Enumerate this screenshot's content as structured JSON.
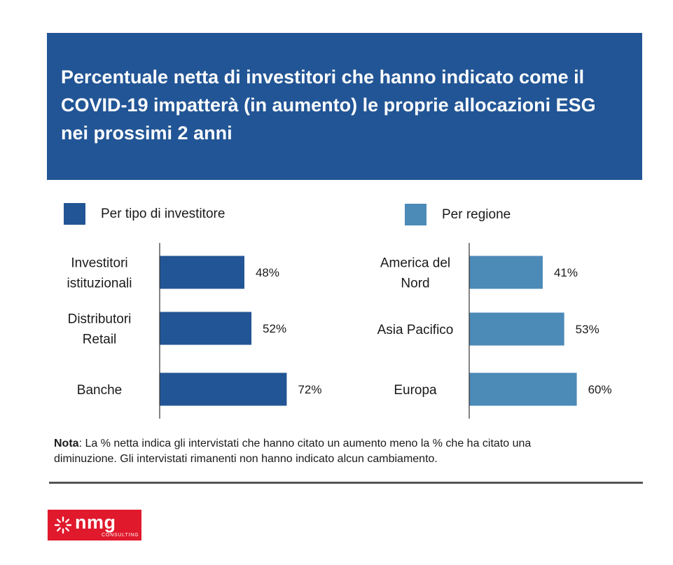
{
  "header": {
    "title": "Percentuale netta di investitori che hanno indicato come il COVID-19 impatterà (in aumento) le proprie allocazioni ESG nei prossimi 2 anni"
  },
  "colors": {
    "header_bg": "#225595",
    "investor_bar": "#225595",
    "region_bar": "#4c8ab8",
    "logo_bg": "#e0192c"
  },
  "chart_data": [
    {
      "type": "bar",
      "orientation": "horizontal",
      "legend_label": "Per tipo di investitore",
      "categories": [
        "Investitori istituzionali",
        "Distributori Retail",
        "Banche"
      ],
      "category_lines": [
        [
          "Investitori",
          "istituzionali"
        ],
        [
          "Distributori",
          "Retail"
        ],
        [
          "Banche"
        ]
      ],
      "values": [
        48,
        52,
        72
      ],
      "value_labels": [
        "48%",
        "52%",
        "72%"
      ],
      "xlim": [
        0,
        100
      ]
    },
    {
      "type": "bar",
      "orientation": "horizontal",
      "legend_label": "Per regione",
      "categories": [
        "America del Nord",
        "Asia Pacifico",
        "Europa"
      ],
      "category_lines": [
        [
          "America del",
          "Nord"
        ],
        [
          "Asia Pacifico"
        ],
        [
          "Europa"
        ]
      ],
      "values": [
        41,
        53,
        60
      ],
      "value_labels": [
        "41%",
        "53%",
        "60%"
      ],
      "xlim": [
        0,
        100
      ]
    }
  ],
  "note": {
    "label": "Nota",
    "text": ": La % netta indica gli intervistati che hanno citato un aumento meno la % che ha citato una diminuzione. Gli intervistati rimanenti non hanno indicato alcun cambiamento."
  },
  "logo": {
    "name": "nmg",
    "tagline": "CONSULTING"
  }
}
